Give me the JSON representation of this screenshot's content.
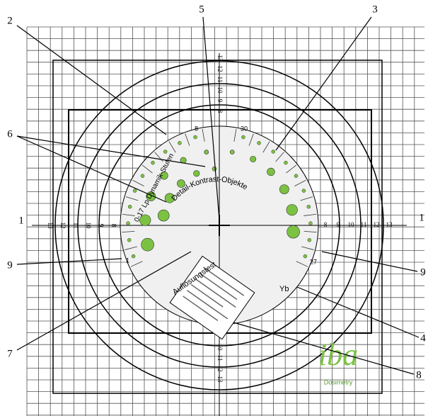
{
  "callouts": [
    "1",
    "2",
    "3",
    "4",
    "5",
    "6",
    "7",
    "8",
    "9",
    "1",
    "9"
  ],
  "scale": {
    "left": [
      "13",
      "12",
      "11",
      "10",
      "9",
      "8"
    ],
    "right": [
      "8",
      "9",
      "10",
      "11",
      "12",
      "13"
    ],
    "top": [
      "13",
      "12",
      "11",
      "10",
      "9",
      "8"
    ],
    "bottom": [
      "10",
      "11",
      "12",
      "13"
    ]
  },
  "phantom": {
    "detail_title": "Detail-Kontrast-Objekte",
    "resolution_title": "Auflösungstest",
    "dynamic_title": "0-17 Lp Dynamik-Stufen",
    "marker": "Yb",
    "numbers": [
      "8",
      "30",
      "27",
      "1"
    ]
  },
  "logo": {
    "name": "iba",
    "sub": "Dosimetry"
  }
}
